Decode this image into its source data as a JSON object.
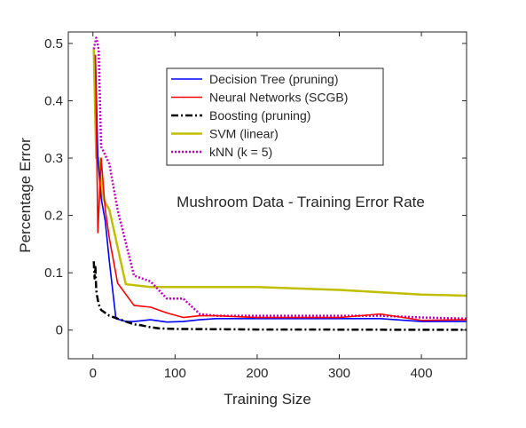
{
  "chart_data": {
    "type": "line",
    "title": "Mushroom Data - Training Error Rate",
    "xlabel": "Training Size",
    "ylabel": "Percentage Error",
    "xlim": [
      -30,
      455
    ],
    "ylim": [
      -0.05,
      0.52
    ],
    "xticks": [
      0,
      100,
      200,
      300,
      400
    ],
    "xtick_labels": [
      "0",
      "100",
      "200",
      "300",
      "400"
    ],
    "yticks": [
      0,
      0.1,
      0.2,
      0.3,
      0.4,
      0.5
    ],
    "ytick_labels": [
      "0",
      "0.1",
      "0.2",
      "0.3",
      "0.4",
      "0.5"
    ],
    "grid": false,
    "legend_position": "upper-center",
    "series": [
      {
        "name": "Decision Tree (pruning)",
        "color": "#0000ff",
        "style": "solid",
        "x": [
          3,
          6,
          10,
          15,
          20,
          28,
          40,
          50,
          70,
          90,
          110,
          130,
          150,
          200,
          250,
          300,
          350,
          400,
          455
        ],
        "y": [
          0.48,
          0.3,
          0.23,
          0.19,
          0.12,
          0.02,
          0.015,
          0.015,
          0.018,
          0.014,
          0.015,
          0.018,
          0.02,
          0.02,
          0.02,
          0.02,
          0.02,
          0.015,
          0.015
        ]
      },
      {
        "name": "Neural Networks (SCGB)",
        "color": "#ff0000",
        "style": "solid",
        "x": [
          3,
          6,
          10,
          15,
          20,
          30,
          50,
          70,
          90,
          110,
          130,
          150,
          200,
          250,
          300,
          350,
          400,
          455
        ],
        "y": [
          0.48,
          0.17,
          0.3,
          0.21,
          0.16,
          0.082,
          0.043,
          0.04,
          0.03,
          0.022,
          0.025,
          0.025,
          0.022,
          0.022,
          0.022,
          0.028,
          0.017,
          0.018
        ]
      },
      {
        "name": "Boosting (pruning)",
        "color": "#000000",
        "style": "dashdot",
        "x": [
          1,
          2,
          3,
          4,
          5,
          7,
          10,
          15,
          20,
          30,
          40,
          50,
          60,
          70,
          80,
          100,
          150,
          200,
          300,
          400,
          455
        ],
        "y": [
          0.12,
          0.09,
          0.11,
          0.07,
          0.06,
          0.045,
          0.035,
          0.03,
          0.025,
          0.02,
          0.015,
          0.01,
          0.008,
          0.005,
          0.003,
          0.002,
          0.0015,
          0.001,
          0.0008,
          0.0005,
          0.0005
        ]
      },
      {
        "name": "SVM (linear)",
        "color": "#bfbf00",
        "style": "solid",
        "x": [
          1,
          4,
          7,
          12,
          20,
          40,
          70,
          100,
          200,
          300,
          400,
          455
        ],
        "y": [
          0.49,
          0.3,
          0.3,
          0.23,
          0.21,
          0.08,
          0.075,
          0.075,
          0.075,
          0.07,
          0.062,
          0.06
        ]
      },
      {
        "name": "kNN (k = 5)",
        "color": "#bf00bf",
        "style": "dotted",
        "x": [
          1,
          4,
          7,
          10,
          20,
          30,
          50,
          70,
          90,
          110,
          130,
          150,
          200,
          250,
          300,
          350,
          400,
          455
        ],
        "y": [
          0.49,
          0.51,
          0.49,
          0.32,
          0.29,
          0.21,
          0.095,
          0.085,
          0.055,
          0.055,
          0.028,
          0.025,
          0.025,
          0.025,
          0.025,
          0.025,
          0.022,
          0.02
        ]
      }
    ]
  }
}
